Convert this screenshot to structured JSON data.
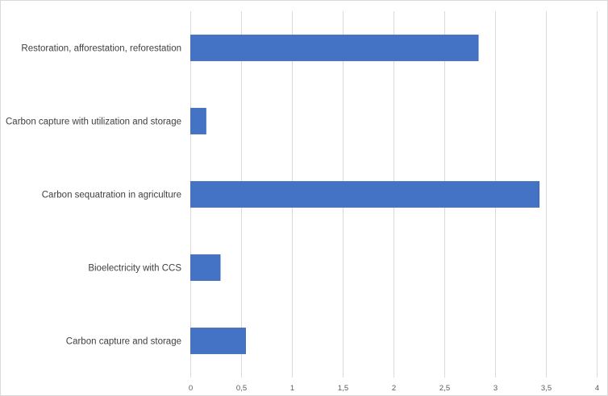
{
  "chart_data": {
    "type": "bar",
    "orientation": "horizontal",
    "title": "",
    "xlabel": "",
    "ylabel": "",
    "categories": [
      "Restoration, afforestation, reforestation",
      "Carbon capture with utilization and storage",
      "Carbon sequatration  in agriculture",
      "Bioelectricity with CCS",
      "Carbon capture and storage"
    ],
    "values": [
      2.83,
      0.15,
      3.43,
      0.29,
      0.54
    ],
    "xlim": [
      0,
      4
    ],
    "xticks": [
      "0",
      "0,5",
      "1",
      "1,5",
      "2",
      "2,5",
      "3",
      "3,5",
      "4"
    ],
    "grid": true,
    "legend": "none",
    "bar_color": "#4472c4"
  }
}
